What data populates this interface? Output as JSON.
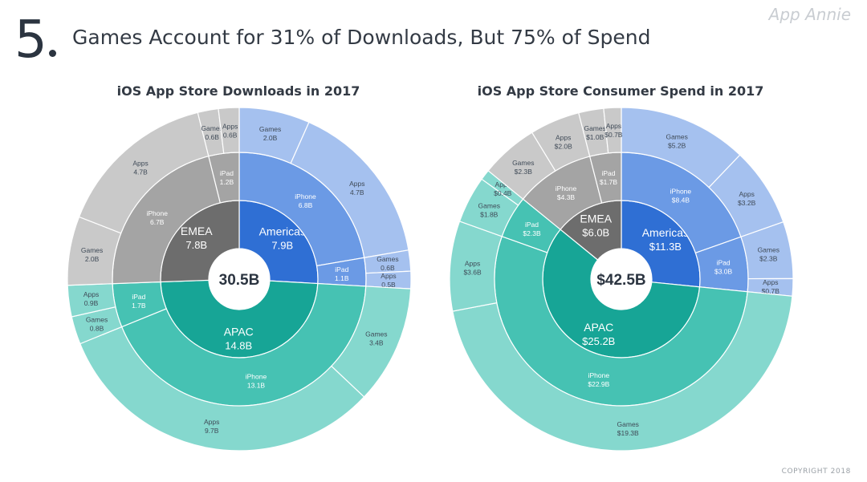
{
  "header": {
    "slide_number": "5",
    "title": "Games Account for 31% of Downloads, But 75% of Spend",
    "brand": "App Annie",
    "copyright": "COPYRIGHT 2018"
  },
  "colors": {
    "americas": [
      "#2f6fd4",
      "#6b9ae5",
      "#a5c1ef"
    ],
    "emea": [
      "#6d6d6d",
      "#a4a4a4",
      "#c9c9c9"
    ],
    "apac": [
      "#17a596",
      "#46c2b3",
      "#85d8ce"
    ]
  },
  "chart_data": [
    {
      "type": "sunburst",
      "title": "iOS App Store Downloads in 2017",
      "total": "30.5B",
      "regions": [
        {
          "name": "Americas",
          "label": "7.9B",
          "value": 7.9,
          "color_key": "americas",
          "devices": [
            {
              "name": "iPhone",
              "label": "6.8B",
              "value": 6.8,
              "categories": [
                {
                  "name": "Games",
                  "label": "2.0B",
                  "value": 2.0
                },
                {
                  "name": "Apps",
                  "label": "4.7B",
                  "value": 4.7
                }
              ]
            },
            {
              "name": "iPad",
              "label": "1.1B",
              "value": 1.1,
              "categories": [
                {
                  "name": "Games",
                  "label": "0.6B",
                  "value": 0.6
                },
                {
                  "name": "Apps",
                  "label": "0.5B",
                  "value": 0.5
                }
              ]
            }
          ]
        },
        {
          "name": "APAC",
          "label": "14.8B",
          "value": 14.8,
          "color_key": "apac",
          "devices": [
            {
              "name": "iPhone",
              "label": "13.1B",
              "value": 13.1,
              "categories": [
                {
                  "name": "Games",
                  "label": "3.4B",
                  "value": 3.4
                },
                {
                  "name": "Apps",
                  "label": "9.7B",
                  "value": 9.7
                }
              ]
            },
            {
              "name": "iPad",
              "label": "1.7B",
              "value": 1.7,
              "categories": [
                {
                  "name": "Games",
                  "label": "0.8B",
                  "value": 0.8
                },
                {
                  "name": "Apps",
                  "label": "0.9B",
                  "value": 0.9
                }
              ]
            }
          ]
        },
        {
          "name": "EMEA",
          "label": "7.8B",
          "value": 7.8,
          "color_key": "emea",
          "devices": [
            {
              "name": "iPhone",
              "label": "6.7B",
              "value": 6.7,
              "categories": [
                {
                  "name": "Games",
                  "label": "2.0B",
                  "value": 2.0
                },
                {
                  "name": "Apps",
                  "label": "4.7B",
                  "value": 4.7
                }
              ]
            },
            {
              "name": "iPad",
              "label": "1.2B",
              "value": 1.2,
              "categories": [
                {
                  "name": "Games",
                  "label": "0.6B",
                  "value": 0.6
                },
                {
                  "name": "Apps",
                  "label": "0.6B",
                  "value": 0.6
                }
              ]
            }
          ]
        }
      ]
    },
    {
      "type": "sunburst",
      "title": "iOS App Store Consumer Spend in 2017",
      "total": "$42.5B",
      "regions": [
        {
          "name": "Americas",
          "label": "$11.3B",
          "value": 11.3,
          "color_key": "americas",
          "devices": [
            {
              "name": "iPhone",
              "label": "$8.4B",
              "value": 8.4,
              "categories": [
                {
                  "name": "Games",
                  "label": "$5.2B",
                  "value": 5.2
                },
                {
                  "name": "Apps",
                  "label": "$3.2B",
                  "value": 3.2
                }
              ]
            },
            {
              "name": "iPad",
              "label": "$3.0B",
              "value": 3.0,
              "categories": [
                {
                  "name": "Games",
                  "label": "$2.3B",
                  "value": 2.3
                },
                {
                  "name": "Apps",
                  "label": "$0.7B",
                  "value": 0.7
                }
              ]
            }
          ]
        },
        {
          "name": "APAC",
          "label": "$25.2B",
          "value": 25.2,
          "color_key": "apac",
          "devices": [
            {
              "name": "iPhone",
              "label": "$22.9B",
              "value": 22.9,
              "categories": [
                {
                  "name": "Games",
                  "label": "$19.3B",
                  "value": 19.3
                },
                {
                  "name": "Apps",
                  "label": "$3.6B",
                  "value": 3.6
                }
              ]
            },
            {
              "name": "iPad",
              "label": "$2.3B",
              "value": 2.3,
              "categories": [
                {
                  "name": "Games",
                  "label": "$1.8B",
                  "value": 1.8
                },
                {
                  "name": "Apps",
                  "label": "$0.4B",
                  "value": 0.4
                }
              ]
            }
          ]
        },
        {
          "name": "EMEA",
          "label": "$6.0B",
          "value": 6.0,
          "color_key": "emea",
          "devices": [
            {
              "name": "iPhone",
              "label": "$4.3B",
              "value": 4.3,
              "categories": [
                {
                  "name": "Games",
                  "label": "$2.3B",
                  "value": 2.3
                },
                {
                  "name": "Apps",
                  "label": "$2.0B",
                  "value": 2.0
                }
              ]
            },
            {
              "name": "iPad",
              "label": "$1.7B",
              "value": 1.7,
              "categories": [
                {
                  "name": "Games",
                  "label": "$1.0B",
                  "value": 1.0
                },
                {
                  "name": "Apps",
                  "label": "$0.7B",
                  "value": 0.7
                }
              ]
            }
          ]
        }
      ]
    }
  ]
}
